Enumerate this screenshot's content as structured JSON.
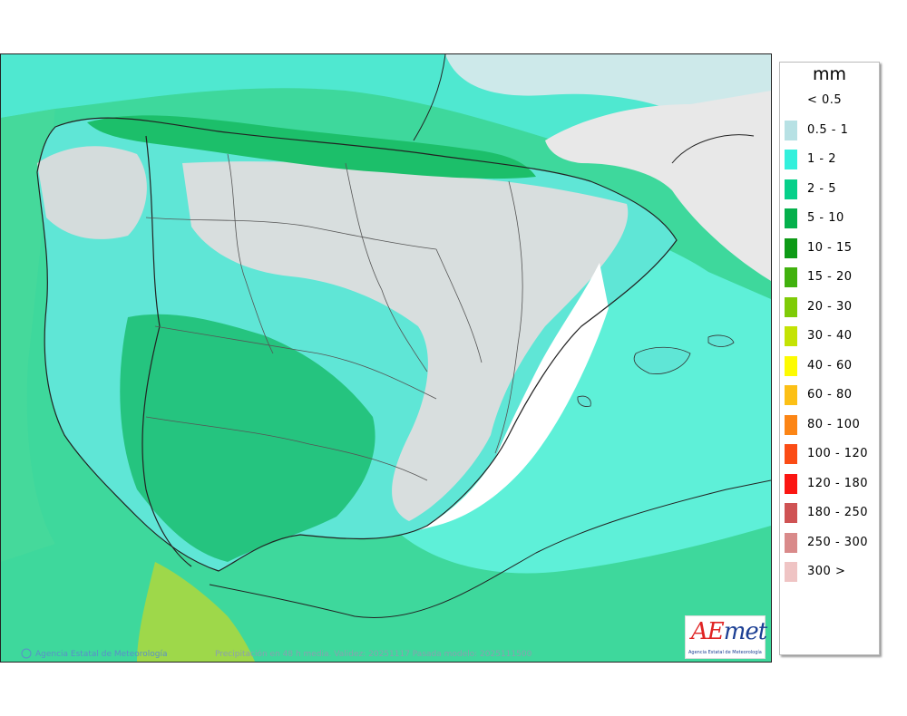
{
  "map": {
    "credit_left": "Agencia Estatal de Meteorología",
    "credit_center": "Precipitación en 48 h media. Validez: 20251117 Pasada modelo: 2025111500"
  },
  "legend": {
    "unit": "mm",
    "items": [
      {
        "label": "< 0.5",
        "color": "#ffffff"
      },
      {
        "label": "0.5 - 1",
        "color": "#b7e1e4"
      },
      {
        "label": "1 - 2",
        "color": "#33f0dc"
      },
      {
        "label": "2 - 5",
        "color": "#06d08a"
      },
      {
        "label": "5 - 10",
        "color": "#04b04c"
      },
      {
        "label": "10 - 15",
        "color": "#0d9a16"
      },
      {
        "label": "15 - 20",
        "color": "#41b10e"
      },
      {
        "label": "20 - 30",
        "color": "#7fcb07"
      },
      {
        "label": "30 - 40",
        "color": "#c4e304"
      },
      {
        "label": "40 - 60",
        "color": "#fdfb02"
      },
      {
        "label": "60 - 80",
        "color": "#fcc016"
      },
      {
        "label": "80 - 100",
        "color": "#fc8515"
      },
      {
        "label": "100 - 120",
        "color": "#fb4c15"
      },
      {
        "label": "120 - 180",
        "color": "#fb1612"
      },
      {
        "label": "180 - 250",
        "color": "#cf5354"
      },
      {
        "label": "250 - 300",
        "color": "#d98a8a"
      },
      {
        "label": "300 >",
        "color": "#efc4c4"
      }
    ]
  },
  "logo": {
    "brand_prefix": "A",
    "brand_accent": "E",
    "brand_suffix": "met",
    "subtitle": "Agencia Estatal de Meteorología"
  }
}
